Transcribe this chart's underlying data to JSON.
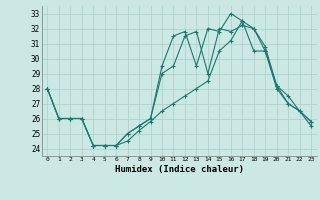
{
  "xlabel": "Humidex (Indice chaleur)",
  "background_color": "#cce8e4",
  "grid_color": "#aacfcb",
  "line_color": "#1a7a6e",
  "xlim": [
    -0.5,
    23.5
  ],
  "ylim": [
    23.5,
    33.5
  ],
  "xticks": [
    0,
    1,
    2,
    3,
    4,
    5,
    6,
    7,
    8,
    9,
    10,
    11,
    12,
    13,
    14,
    15,
    16,
    17,
    18,
    19,
    20,
    21,
    22,
    23
  ],
  "yticks": [
    24,
    25,
    26,
    27,
    28,
    29,
    30,
    31,
    32,
    33
  ],
  "series1_x": [
    0,
    1,
    2,
    3,
    4,
    5,
    6,
    7,
    8,
    9,
    10,
    11,
    12,
    13,
    14,
    15,
    16,
    17,
    18,
    19,
    20,
    21,
    22,
    23
  ],
  "series1_y": [
    28,
    26,
    26,
    26,
    24.2,
    24.2,
    24.2,
    24.5,
    25.2,
    25.8,
    26.5,
    27.0,
    27.5,
    28.0,
    28.5,
    30.5,
    31.2,
    32.5,
    30.5,
    30.5,
    28.0,
    27.0,
    26.5,
    25.5
  ],
  "series2_x": [
    0,
    1,
    2,
    3,
    4,
    5,
    6,
    7,
    8,
    9,
    10,
    11,
    12,
    13,
    14,
    15,
    16,
    17,
    18,
    19,
    20,
    21,
    22,
    23
  ],
  "series2_y": [
    28,
    26,
    26,
    26,
    24.2,
    24.2,
    24.2,
    25.0,
    25.5,
    26.0,
    29.0,
    29.5,
    31.5,
    31.8,
    29.0,
    32.0,
    31.8,
    32.2,
    32.0,
    30.5,
    28.2,
    27.0,
    26.5,
    25.8
  ],
  "series3_x": [
    0,
    1,
    2,
    3,
    4,
    5,
    6,
    7,
    8,
    9,
    10,
    11,
    12,
    13,
    14,
    15,
    16,
    17,
    18,
    19,
    20,
    21,
    22,
    23
  ],
  "series3_y": [
    28,
    26,
    26,
    26,
    24.2,
    24.2,
    24.2,
    25.0,
    25.5,
    26.0,
    29.5,
    31.5,
    31.8,
    29.5,
    32.0,
    31.8,
    33.0,
    32.5,
    32.0,
    30.8,
    28.2,
    27.5,
    26.5,
    25.8
  ]
}
